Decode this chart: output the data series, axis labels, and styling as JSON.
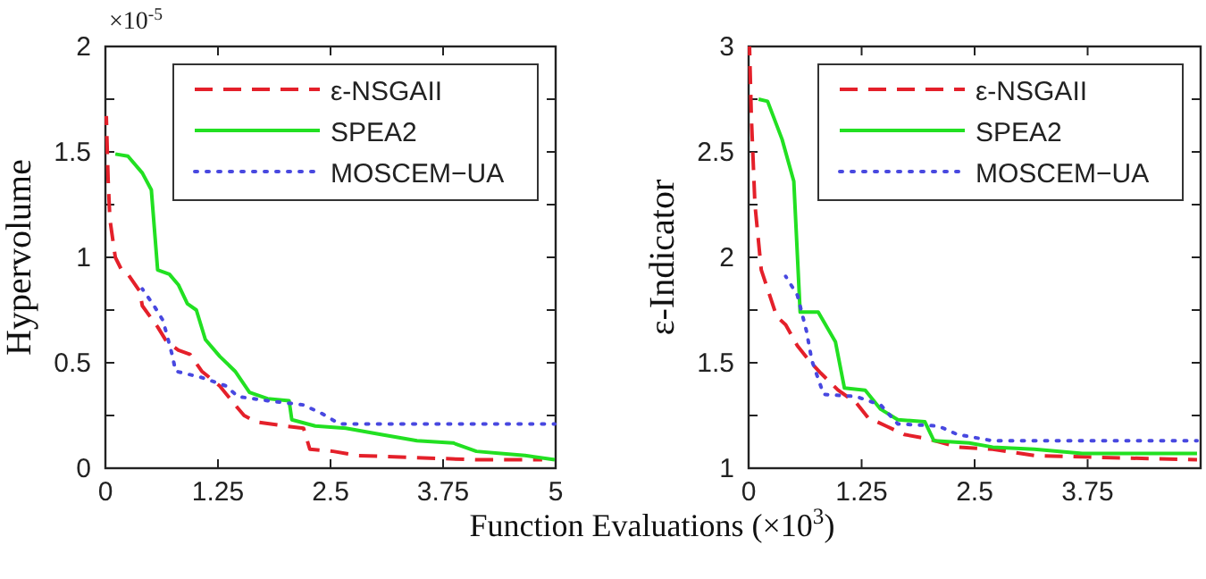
{
  "chart_data": [
    {
      "type": "line",
      "ylabel": "Hypervolume",
      "xlabel": "Function Evaluations (×10$^{3}$)",
      "annotations": [
        "×10$^{-5}$"
      ],
      "xlim": [
        0,
        5
      ],
      "xticks": [
        0,
        1.25,
        2.5,
        3.75,
        5
      ],
      "ylim": [
        0,
        2
      ],
      "yticks": [
        0,
        {
          "value": 0.25,
          "label": null
        },
        0.5,
        {
          "value": 0.75,
          "label": null
        },
        1,
        {
          "value": 1.25,
          "label": null
        },
        1.5,
        {
          "value": 1.75,
          "label": null
        },
        2
      ],
      "legend": "top right",
      "grid": false,
      "series": [
        {
          "name": "ε-NSGAII",
          "color": "#e4202a",
          "line_style": "dashed",
          "x": [
            0.01,
            0.03,
            0.05,
            0.11,
            0.18,
            0.25,
            0.38,
            0.41,
            0.58,
            0.68,
            0.81,
            0.94,
            1.07,
            1.27,
            1.44,
            1.54,
            1.67,
            2.0,
            2.2,
            2.27,
            2.53,
            2.8,
            3.46,
            4.12,
            4.85
          ],
          "values": [
            1.67,
            1.37,
            1.18,
            1.0,
            0.94,
            0.92,
            0.84,
            0.77,
            0.67,
            0.6,
            0.56,
            0.54,
            0.46,
            0.39,
            0.3,
            0.25,
            0.22,
            0.2,
            0.19,
            0.09,
            0.08,
            0.06,
            0.05,
            0.04,
            0.04
          ]
        },
        {
          "name": "SPEA2",
          "color": "#22e022",
          "line_style": "solid",
          "x": [
            0.11,
            0.25,
            0.41,
            0.51,
            0.58,
            0.71,
            0.81,
            0.91,
            1.01,
            1.11,
            1.27,
            1.44,
            1.6,
            1.8,
            2.04,
            2.07,
            2.33,
            2.67,
            3.06,
            3.46,
            3.86,
            4.12,
            4.66,
            4.99
          ],
          "values": [
            1.49,
            1.48,
            1.4,
            1.32,
            0.94,
            0.92,
            0.87,
            0.78,
            0.75,
            0.61,
            0.53,
            0.46,
            0.36,
            0.33,
            0.32,
            0.23,
            0.2,
            0.19,
            0.16,
            0.13,
            0.12,
            0.08,
            0.06,
            0.04
          ]
        },
        {
          "name": "MOSCEM−UA",
          "color": "#4848e0",
          "line_style": "dotted",
          "x": [
            0.41,
            0.54,
            0.64,
            0.74,
            0.78,
            1.07,
            1.34,
            1.47,
            1.8,
            2.2,
            2.4,
            2.6,
            4.99
          ],
          "values": [
            0.85,
            0.77,
            0.7,
            0.54,
            0.46,
            0.43,
            0.39,
            0.34,
            0.32,
            0.3,
            0.26,
            0.21,
            0.21
          ]
        }
      ]
    },
    {
      "type": "line",
      "ylabel": "ε-Indicator",
      "xlim": [
        0,
        5
      ],
      "xticks": [
        0,
        1.25,
        2.5,
        3.75,
        {
          "value": 5,
          "label": null
        }
      ],
      "ylim": [
        1,
        3
      ],
      "yticks": [
        1,
        {
          "value": 1.25,
          "label": null
        },
        1.5,
        {
          "value": 1.75,
          "label": null
        },
        2,
        {
          "value": 2.25,
          "label": null
        },
        2.5,
        {
          "value": 2.75,
          "label": null
        },
        3
      ],
      "legend": "top right",
      "grid": false,
      "series": [
        {
          "name": "ε-NSGAII",
          "color": "#e4202a",
          "line_style": "dashed",
          "x": [
            0.01,
            0.03,
            0.07,
            0.14,
            0.21,
            0.31,
            0.41,
            0.54,
            0.67,
            0.8,
            0.99,
            1.19,
            1.32,
            1.52,
            1.72,
            1.98,
            2.31,
            2.7,
            3.16,
            4.01,
            4.96
          ],
          "values": [
            3.0,
            2.67,
            2.25,
            1.94,
            1.85,
            1.72,
            1.68,
            1.58,
            1.51,
            1.45,
            1.37,
            1.31,
            1.24,
            1.2,
            1.16,
            1.14,
            1.1,
            1.09,
            1.06,
            1.05,
            1.04
          ]
        },
        {
          "name": "SPEA2",
          "color": "#22e022",
          "line_style": "solid",
          "x": [
            0.11,
            0.21,
            0.37,
            0.5,
            0.57,
            0.77,
            0.96,
            1.06,
            1.29,
            1.46,
            1.65,
            1.95,
            2.05,
            2.44,
            2.7,
            3.16,
            3.69,
            4.96
          ],
          "values": [
            2.75,
            2.74,
            2.56,
            2.36,
            1.74,
            1.74,
            1.6,
            1.38,
            1.37,
            1.28,
            1.23,
            1.22,
            1.13,
            1.12,
            1.1,
            1.09,
            1.07,
            1.07
          ]
        },
        {
          "name": "MOSCEM−UA",
          "color": "#4848e0",
          "line_style": "dotted",
          "x": [
            0.41,
            0.54,
            0.64,
            0.7,
            0.83,
            1.19,
            1.46,
            1.65,
            2.1,
            2.31,
            2.7,
            4.96
          ],
          "values": [
            1.91,
            1.82,
            1.65,
            1.51,
            1.35,
            1.34,
            1.3,
            1.21,
            1.2,
            1.16,
            1.13,
            1.13
          ]
        }
      ]
    }
  ]
}
